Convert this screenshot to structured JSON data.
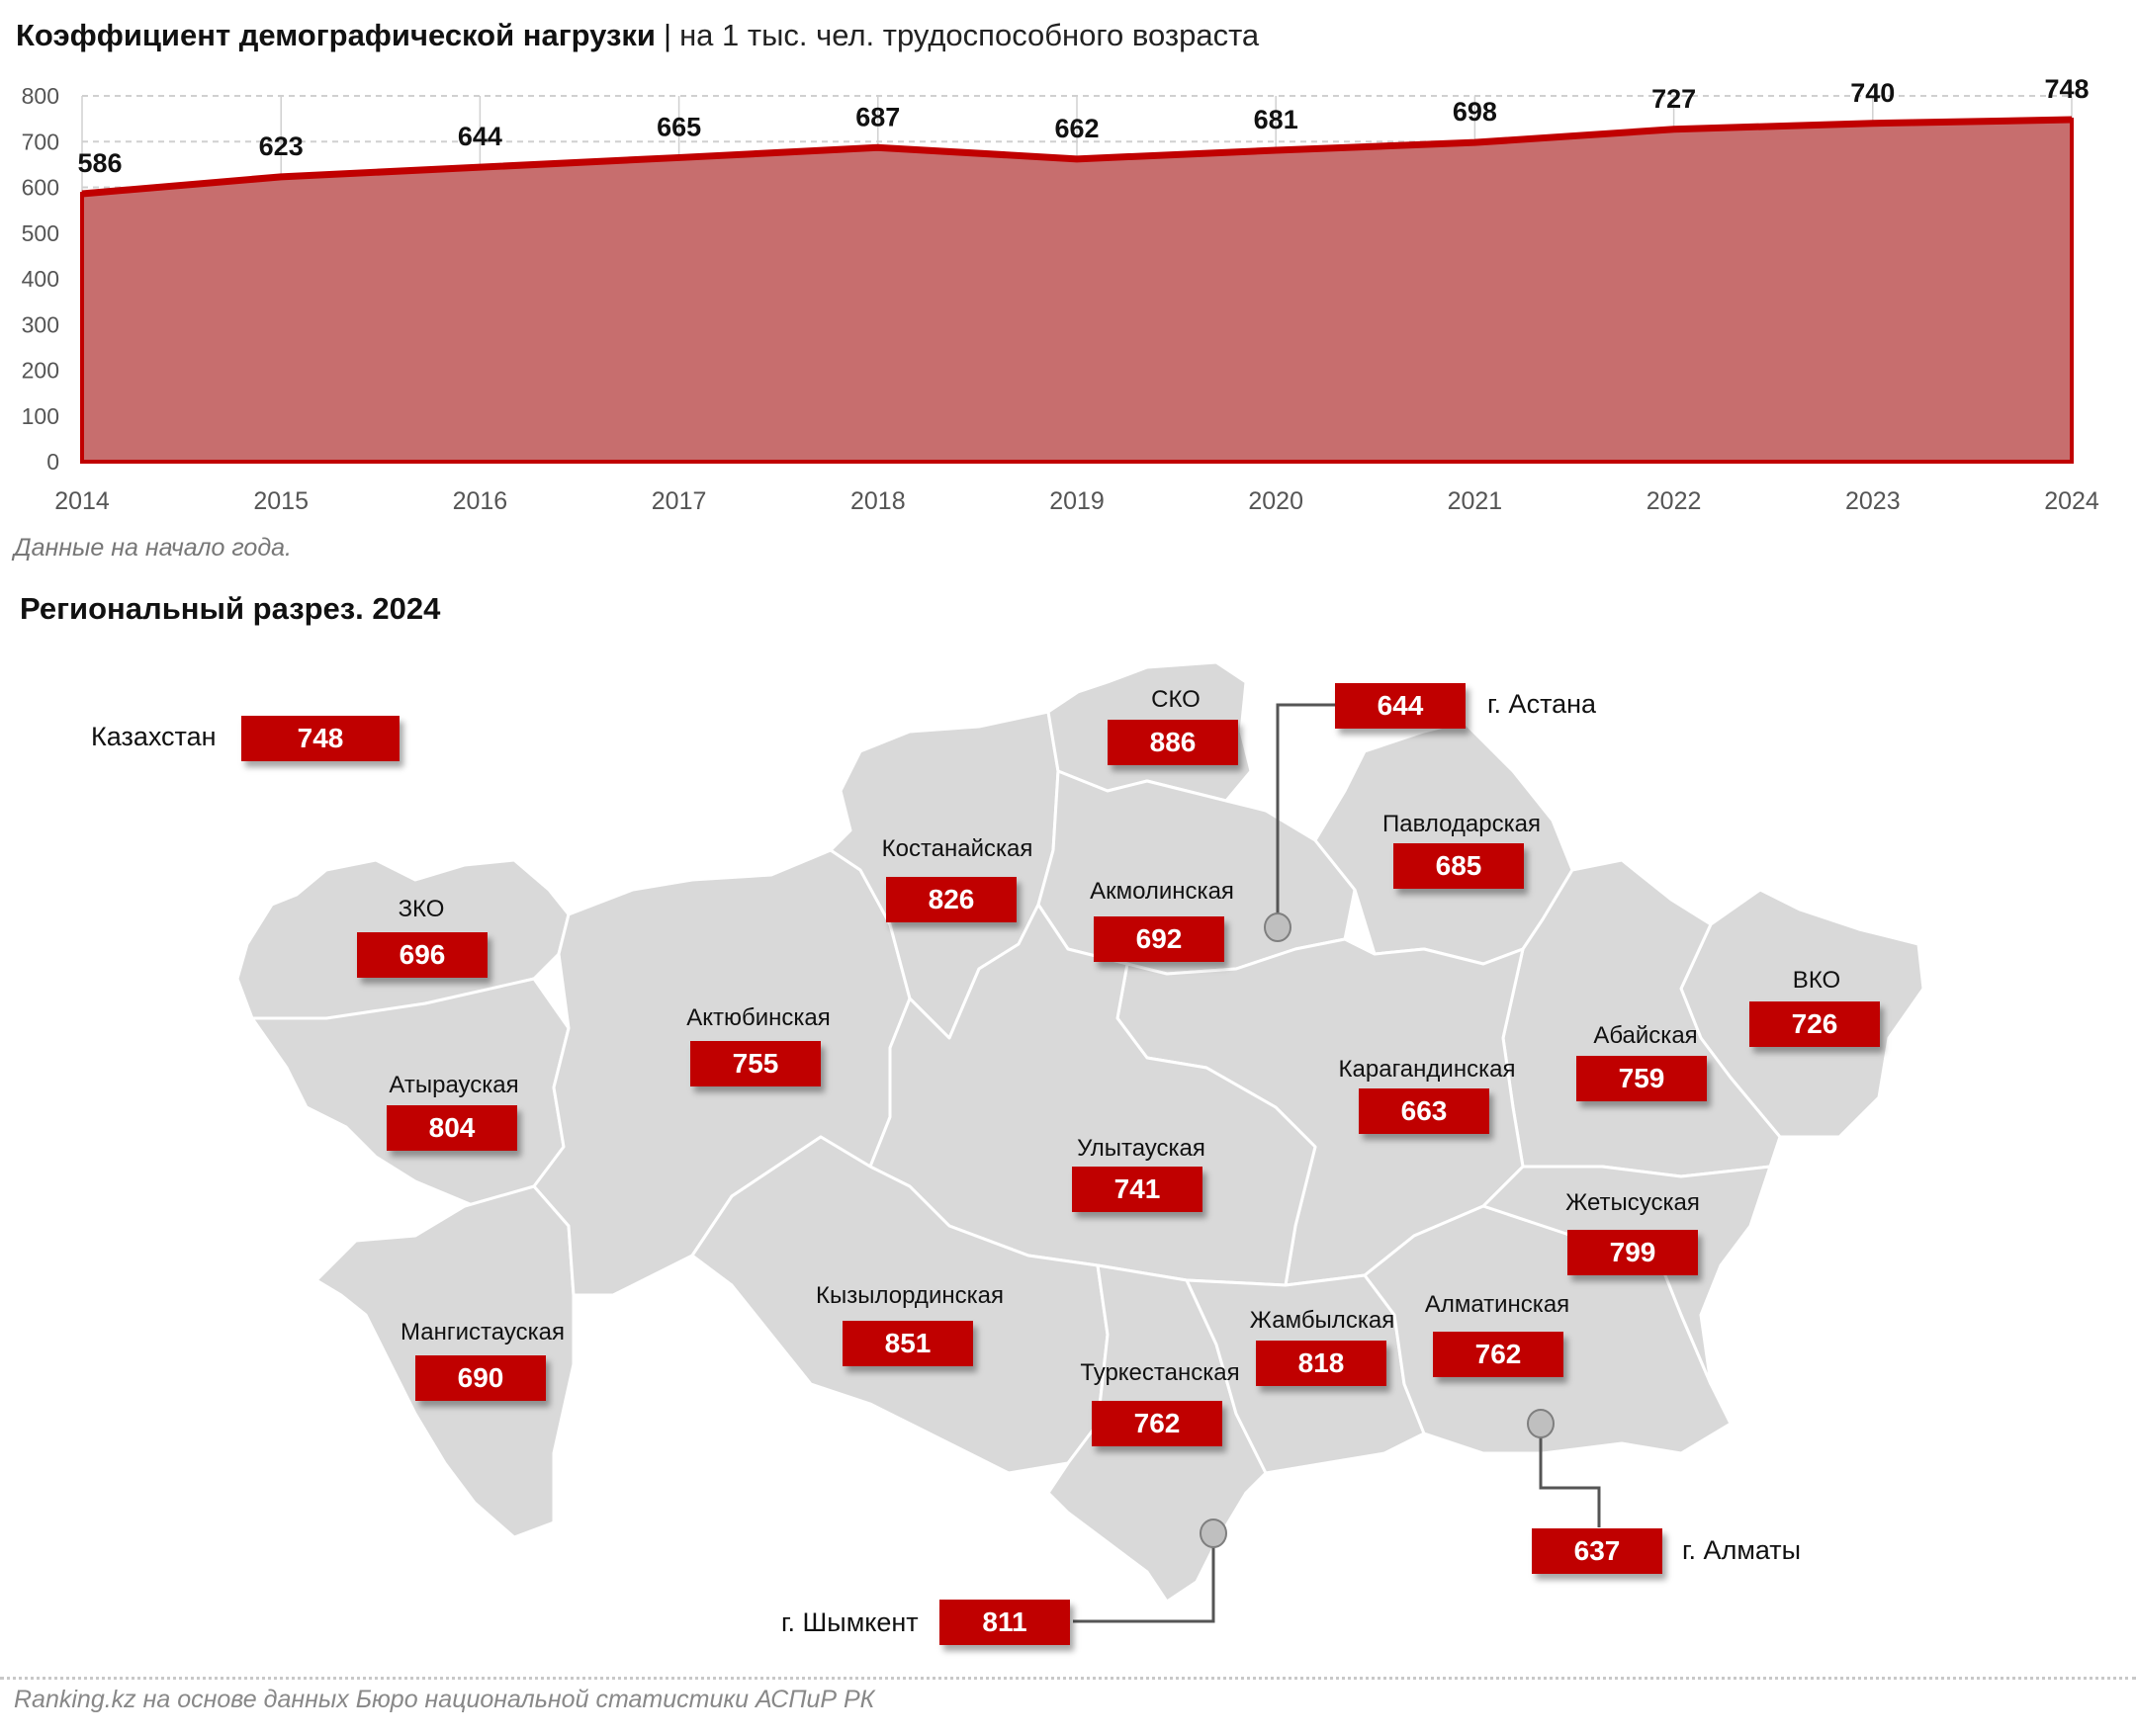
{
  "header": {
    "title_bold": "Коэффициент демографической нагрузки",
    "separator": "|",
    "title_sub": "на 1 тыс. чел. трудоспособного возраста"
  },
  "chart_note": "Данные на начало года.",
  "region_title": "Региональный разрез. 2024",
  "footer": "Ranking.kz на основе данных Бюро национальной статистики АСПиР РК",
  "colors": {
    "accent": "#c00000",
    "area_fill": "#c76e6e",
    "map_fill": "#d9d9d9"
  },
  "chart_data": {
    "type": "area",
    "title": "Коэффициент демографической нагрузки | на 1 тыс. чел. трудоспособного возраста",
    "categories": [
      "2014",
      "2015",
      "2016",
      "2017",
      "2018",
      "2019",
      "2020",
      "2021",
      "2022",
      "2023",
      "2024"
    ],
    "values": [
      586,
      623,
      644,
      665,
      687,
      662,
      681,
      698,
      727,
      740,
      748
    ],
    "y_ticks": [
      "0",
      "100",
      "200",
      "300",
      "400",
      "500",
      "600",
      "700",
      "800"
    ],
    "ylim": [
      0,
      800
    ],
    "xlabel": "",
    "ylabel": "",
    "grid": true,
    "legend": null,
    "note": "Данные на начало года."
  },
  "map": {
    "total": {
      "label": "Казахстан",
      "value": "748"
    },
    "regions": [
      {
        "name": "ЗКО",
        "value": "696"
      },
      {
        "name": "Атырауская",
        "value": "804"
      },
      {
        "name": "Мангистауская",
        "value": "690"
      },
      {
        "name": "Актюбинская",
        "value": "755"
      },
      {
        "name": "Костанайская",
        "value": "826"
      },
      {
        "name": "СКО",
        "value": "886"
      },
      {
        "name": "Акмолинская",
        "value": "692"
      },
      {
        "name": "Павлодарская",
        "value": "685"
      },
      {
        "name": "ВКО",
        "value": "726"
      },
      {
        "name": "Абайская",
        "value": "759"
      },
      {
        "name": "Карагандинская",
        "value": "663"
      },
      {
        "name": "Улытауская",
        "value": "741"
      },
      {
        "name": "Кызылординская",
        "value": "851"
      },
      {
        "name": "Туркестанская",
        "value": "762"
      },
      {
        "name": "Жамбылская",
        "value": "818"
      },
      {
        "name": "Алматинская",
        "value": "762"
      },
      {
        "name": "Жетысуская",
        "value": "799"
      }
    ],
    "cities": [
      {
        "name": "г. Астана",
        "value": "644"
      },
      {
        "name": "г. Алматы",
        "value": "637"
      },
      {
        "name": "г. Шымкент",
        "value": "811"
      }
    ]
  }
}
